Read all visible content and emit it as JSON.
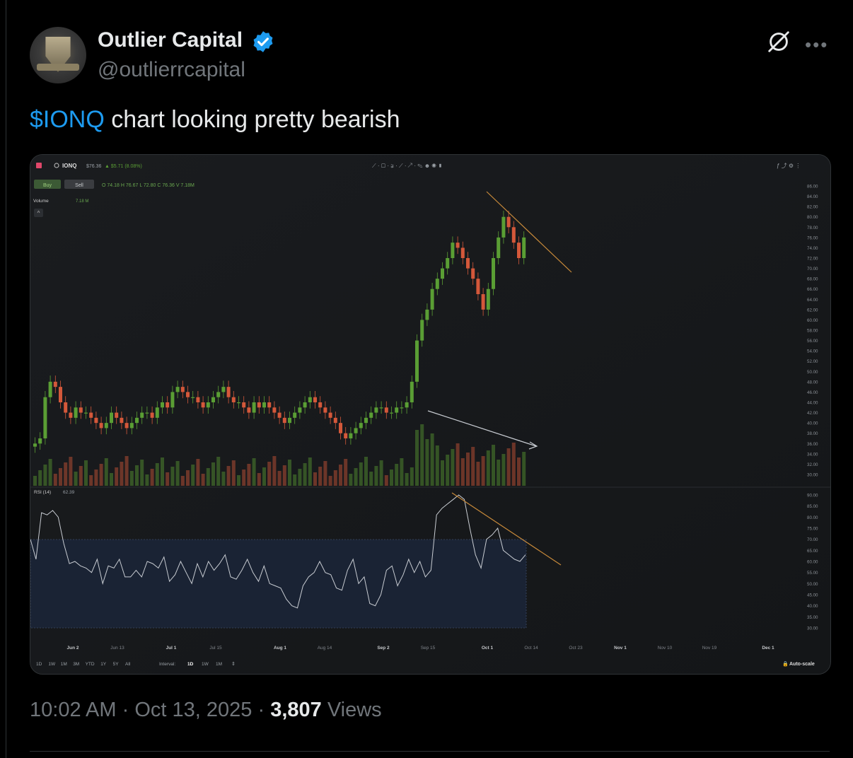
{
  "tweet": {
    "author_name": "Outlier Capital",
    "handle": "@outlierrcapital",
    "cashtag": "$IONQ",
    "text": " chart looking pretty bearish",
    "time": "10:02 AM",
    "date": "Oct 13, 2025",
    "separator": "·",
    "views_count": "3,807",
    "views_label": "Views"
  },
  "icons": {
    "verified": "verified-badge-icon",
    "grok": "grok-icon",
    "more": "more-icon"
  },
  "chart_ui": {
    "symbol": "IONQ",
    "price": "$76.36",
    "change": "▲ $5.71 (8.08%)",
    "buy": "Buy",
    "sell": "Sell",
    "ohlcv": "O 74.18  H 76.67  L 72.80  C 76.36  V 7.18M",
    "volume_label": "Volume",
    "volume_value": "7.18 M",
    "rsi_label": "RSI (14)",
    "rsi_value": "62.39",
    "ranges": [
      "1D",
      "1W",
      "1M",
      "3M",
      "YTD",
      "1Y",
      "5Y",
      "All"
    ],
    "interval_label": "Interval:",
    "intervals": [
      "1D",
      "1W",
      "1M"
    ],
    "autoscale": "Auto-scale"
  },
  "colors": {
    "up": "#5a9e34",
    "down": "#d4583a",
    "rsi_line": "#c8ccd2",
    "trend_line": "#c88a3a",
    "cashtag": "#1d9bf0"
  },
  "chart_data": {
    "type": "candlestick",
    "price_axis_ticks": [
      "86.00",
      "84.00",
      "82.00",
      "80.00",
      "78.00",
      "76.00",
      "74.00",
      "72.00",
      "70.00",
      "68.00",
      "66.00",
      "64.00",
      "62.00",
      "60.00",
      "58.00",
      "56.00",
      "54.00",
      "52.00",
      "50.00",
      "48.00",
      "46.00",
      "44.00",
      "42.00",
      "40.00",
      "38.00",
      "36.00",
      "34.00",
      "32.00",
      "30.00"
    ],
    "rsi_axis_ticks": [
      "90.00",
      "85.00",
      "80.00",
      "75.00",
      "70.00",
      "65.00",
      "60.00",
      "55.00",
      "50.00",
      "45.00",
      "40.00",
      "35.00",
      "30.00"
    ],
    "x_ticks": [
      {
        "label": "Jun 2",
        "bold": true
      },
      {
        "label": "Jun 13",
        "bold": false
      },
      {
        "label": "Jul 1",
        "bold": true
      },
      {
        "label": "Jul 15",
        "bold": false
      },
      {
        "label": "Aug 1",
        "bold": true
      },
      {
        "label": "Aug 14",
        "bold": false
      },
      {
        "label": "Sep 2",
        "bold": true
      },
      {
        "label": "Sep 15",
        "bold": false
      },
      {
        "label": "Oct 1",
        "bold": true
      },
      {
        "label": "Oct 14",
        "bold": false
      },
      {
        "label": "Oct 23",
        "bold": false
      },
      {
        "label": "Nov 1",
        "bold": true
      },
      {
        "label": "Nov 10",
        "bold": false
      },
      {
        "label": "Nov 19",
        "bold": false
      },
      {
        "label": "Dec 1",
        "bold": true
      }
    ],
    "price_range": [
      30,
      86
    ],
    "rsi_range": [
      30,
      90
    ],
    "closes": [
      36,
      37,
      45,
      48,
      47,
      44,
      42,
      41,
      43,
      42,
      42,
      41,
      40,
      39,
      40,
      42,
      41,
      40,
      39,
      40,
      41,
      42,
      42,
      41,
      43,
      44,
      43,
      46,
      47,
      46,
      45,
      45,
      44,
      43,
      44,
      45,
      46,
      47,
      45,
      44,
      44,
      43,
      42,
      44,
      43,
      44,
      43,
      42,
      41,
      40,
      41,
      42,
      43,
      44,
      45,
      44,
      43,
      42,
      41,
      40,
      38,
      37,
      38,
      39,
      40,
      41,
      42,
      43,
      43,
      42,
      42,
      43,
      43,
      44,
      48,
      56,
      60,
      62,
      66,
      68,
      70,
      72,
      75,
      74,
      72,
      70,
      68,
      65,
      62,
      66,
      72,
      76,
      80,
      78,
      75,
      72,
      76
    ],
    "rsi": [
      70,
      61,
      82,
      81,
      83,
      80,
      68,
      59,
      60,
      58,
      57,
      55,
      61,
      50,
      58,
      57,
      61,
      53,
      53,
      56,
      53,
      60,
      59,
      57,
      62,
      51,
      54,
      60,
      55,
      50,
      59,
      53,
      60,
      56,
      59,
      63,
      53,
      52,
      56,
      61,
      55,
      51,
      58,
      50,
      49,
      48,
      43,
      40,
      39,
      49,
      53,
      55,
      60,
      55,
      54,
      48,
      47,
      56,
      61,
      50,
      53,
      41,
      40,
      45,
      56,
      58,
      49,
      54,
      61,
      55,
      60,
      53,
      56,
      81,
      84,
      86,
      88,
      90,
      88,
      75,
      63,
      57,
      70,
      72,
      75,
      65,
      63,
      61,
      60,
      63
    ]
  }
}
